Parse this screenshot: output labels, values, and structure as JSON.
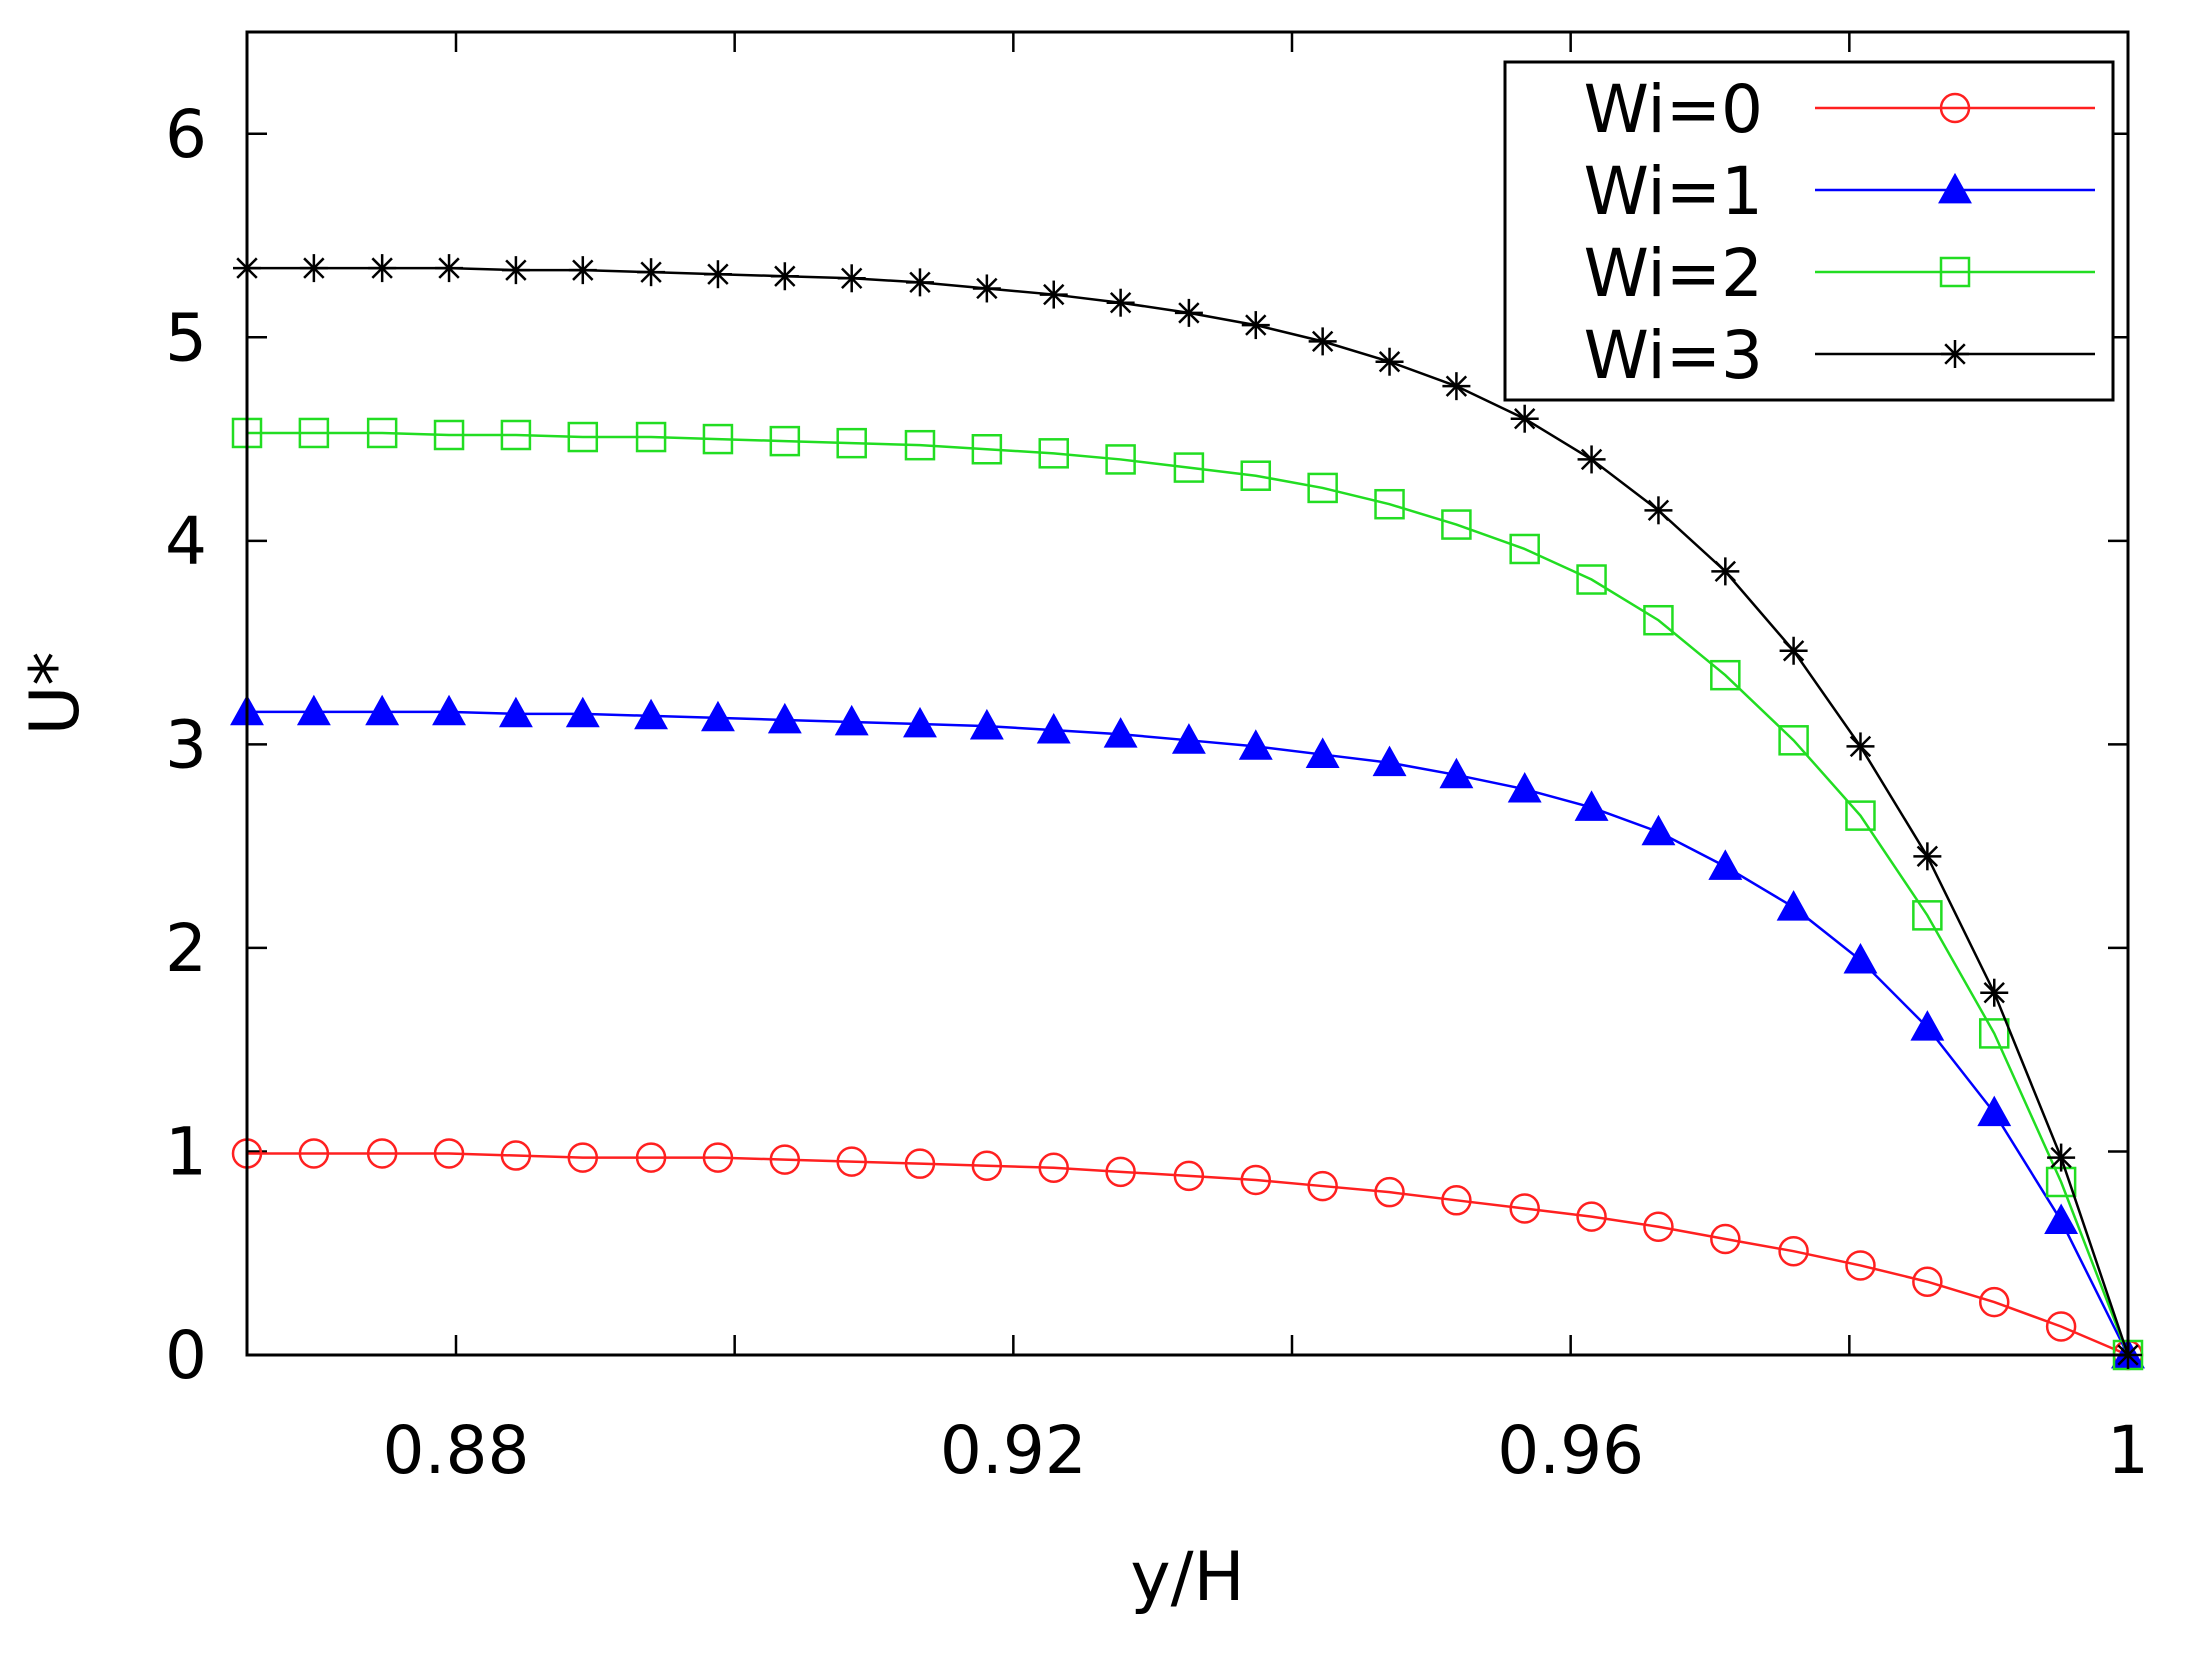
{
  "chart_data": {
    "type": "line",
    "title": "",
    "xlabel": "y/H",
    "ylabel": "U*",
    "xlim": [
      0.865,
      1.0
    ],
    "ylim": [
      0,
      6.5
    ],
    "x_ticks": [
      {
        "value": 0.88,
        "label": "0.88"
      },
      {
        "value": 0.92,
        "label": "0.92"
      },
      {
        "value": 0.96,
        "label": "0.96"
      },
      {
        "value": 1.0,
        "label": "1"
      }
    ],
    "x_minor_ticks": [
      0.86,
      0.88,
      0.9,
      0.92,
      0.94,
      0.96,
      0.98,
      1.0
    ],
    "y_ticks": [
      {
        "value": 0,
        "label": "0"
      },
      {
        "value": 1,
        "label": "1"
      },
      {
        "value": 2,
        "label": "2"
      },
      {
        "value": 3,
        "label": "3"
      },
      {
        "value": 4,
        "label": "4"
      },
      {
        "value": 5,
        "label": "5"
      },
      {
        "value": 6,
        "label": "6"
      }
    ],
    "grid": false,
    "legend_position": "top-right",
    "x": [
      0.865,
      0.8698,
      0.8747,
      0.8795,
      0.8843,
      0.8891,
      0.894,
      0.8988,
      0.9036,
      0.9084,
      0.9133,
      0.9181,
      0.9229,
      0.9277,
      0.9326,
      0.9374,
      0.9422,
      0.947,
      0.9518,
      0.9567,
      0.9615,
      0.9663,
      0.9711,
      0.976,
      0.9808,
      0.9856,
      0.9904,
      0.9952,
      1.0
    ],
    "series": [
      {
        "name": "Wi=0",
        "color": "#ff2020",
        "marker": "circle",
        "values": [
          0.99,
          0.99,
          0.99,
          0.99,
          0.98,
          0.97,
          0.97,
          0.97,
          0.96,
          0.95,
          0.94,
          0.93,
          0.92,
          0.9,
          0.88,
          0.86,
          0.83,
          0.8,
          0.76,
          0.72,
          0.68,
          0.63,
          0.57,
          0.51,
          0.44,
          0.36,
          0.26,
          0.14,
          0.0
        ]
      },
      {
        "name": "Wi=1",
        "color": "#0000ff",
        "marker": "triangle",
        "values": [
          3.16,
          3.16,
          3.16,
          3.16,
          3.15,
          3.15,
          3.14,
          3.13,
          3.12,
          3.11,
          3.1,
          3.09,
          3.07,
          3.05,
          3.02,
          2.99,
          2.95,
          2.91,
          2.85,
          2.78,
          2.69,
          2.57,
          2.4,
          2.2,
          1.94,
          1.61,
          1.19,
          0.66,
          0.0
        ]
      },
      {
        "name": "Wi=2",
        "color": "#22dd22",
        "marker": "square",
        "values": [
          4.53,
          4.53,
          4.53,
          4.52,
          4.52,
          4.51,
          4.51,
          4.5,
          4.49,
          4.48,
          4.47,
          4.45,
          4.43,
          4.4,
          4.36,
          4.32,
          4.26,
          4.18,
          4.08,
          3.96,
          3.81,
          3.61,
          3.34,
          3.02,
          2.65,
          2.16,
          1.58,
          0.85,
          0.0
        ]
      },
      {
        "name": "Wi=3",
        "color": "#000000",
        "marker": "star",
        "values": [
          5.34,
          5.34,
          5.34,
          5.34,
          5.33,
          5.33,
          5.32,
          5.31,
          5.3,
          5.29,
          5.27,
          5.24,
          5.21,
          5.17,
          5.12,
          5.06,
          4.98,
          4.88,
          4.76,
          4.6,
          4.4,
          4.15,
          3.85,
          3.46,
          2.99,
          2.45,
          1.78,
          0.97,
          0.0
        ]
      }
    ]
  }
}
